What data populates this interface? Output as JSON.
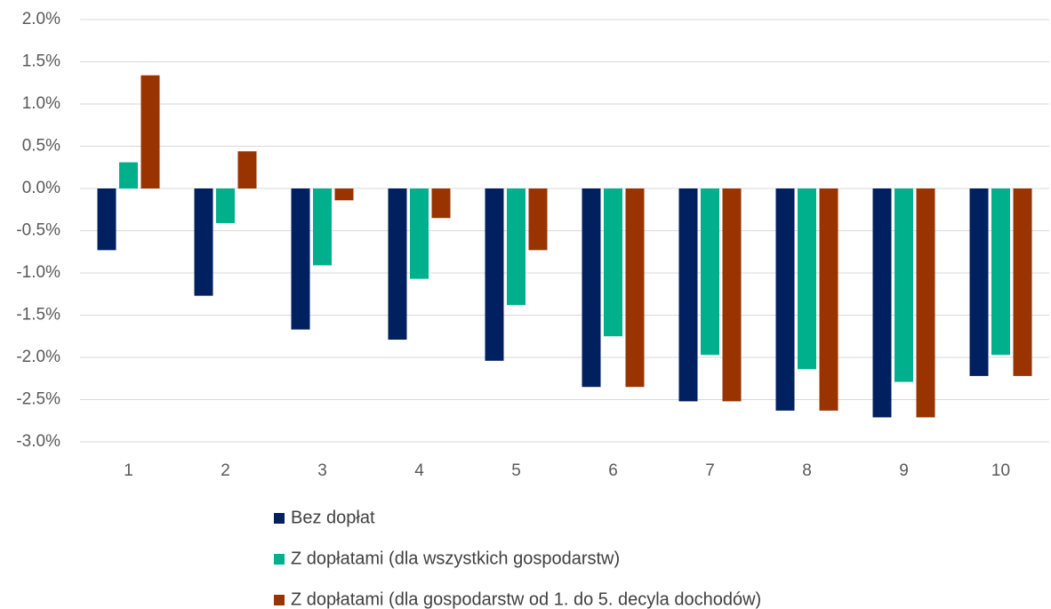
{
  "chart_data": {
    "type": "bar",
    "categories": [
      "1",
      "2",
      "3",
      "4",
      "5",
      "6",
      "7",
      "8",
      "9",
      "10"
    ],
    "series": [
      {
        "name": "Bez dopłat",
        "color": "#002060",
        "values": [
          -0.73,
          -1.27,
          -1.67,
          -1.79,
          -2.04,
          -2.35,
          -2.52,
          -2.63,
          -2.71,
          -2.22
        ]
      },
      {
        "name": "Z dopłatami (dla wszystkich gospodarstw)",
        "color": "#00b08c",
        "values": [
          0.31,
          -0.41,
          -0.91,
          -1.07,
          -1.38,
          -1.75,
          -1.97,
          -2.14,
          -2.29,
          -1.97
        ]
      },
      {
        "name": "Z dopłatami (dla gospodarstw od 1. do 5. decyla dochodów)",
        "color": "#993300",
        "values": [
          1.34,
          0.44,
          -0.14,
          -0.35,
          -0.73,
          -2.35,
          -2.52,
          -2.63,
          -2.71,
          -2.22
        ]
      }
    ],
    "ylim": [
      -3.0,
      2.0
    ],
    "yticks": [
      {
        "value": 2.0,
        "label": "2.0%"
      },
      {
        "value": 1.5,
        "label": "1.5%"
      },
      {
        "value": 1.0,
        "label": "1.0%"
      },
      {
        "value": 0.5,
        "label": "0.5%"
      },
      {
        "value": 0.0,
        "label": "0.0%"
      },
      {
        "value": -0.5,
        "label": "-0.5%"
      },
      {
        "value": -1.0,
        "label": "-1.0%"
      },
      {
        "value": -1.5,
        "label": "-1.5%"
      },
      {
        "value": -2.0,
        "label": "-2.0%"
      },
      {
        "value": -2.5,
        "label": "-2.5%"
      },
      {
        "value": -3.0,
        "label": "-3.0%"
      }
    ],
    "grid": true
  }
}
